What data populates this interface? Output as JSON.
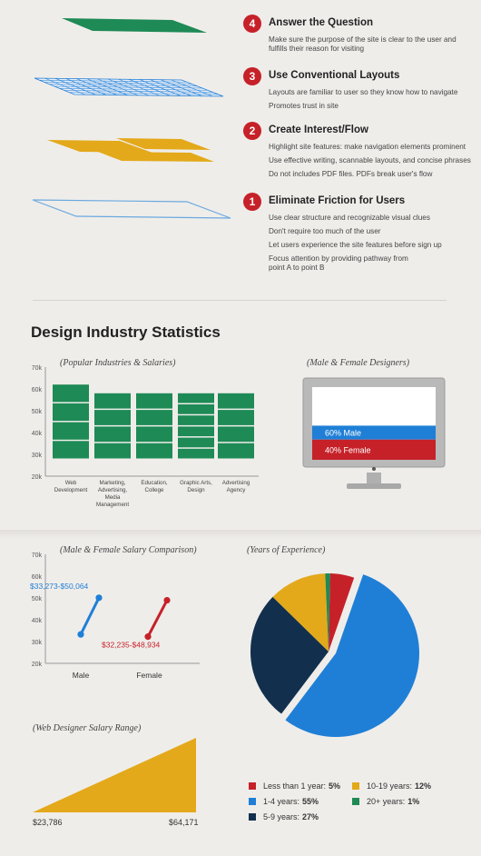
{
  "steps": [
    {
      "num": "4",
      "title": "Answer the Question",
      "lines": [
        "Make sure the purpose of the site is clear to the user and",
        "fulfills their reason for visiting"
      ]
    },
    {
      "num": "3",
      "title": "Use Conventional Layouts",
      "lines": [
        "Layouts are familiar to user so they know how to navigate",
        "Promotes trust in site"
      ]
    },
    {
      "num": "2",
      "title": "Create Interest/Flow",
      "lines": [
        "Highlight site features: make navigation elements prominent",
        "Use effective writing, scannable layouts, and concise phrases",
        "Do not includes PDF files. PDFs break user's flow"
      ]
    },
    {
      "num": "1",
      "title": "Eliminate Friction for Users",
      "lines": [
        "Use clear structure and recognizable visual clues",
        "Don't require too much of the user",
        "Let users experience the site features before sign up",
        "Focus attention by providing pathway from",
        "point A to point B"
      ]
    }
  ],
  "stats_title": "Design Industry Statistics",
  "colors": {
    "green": "#1e8a55",
    "blue": "#1f7fd6",
    "red": "#c62129",
    "yellow": "#e3a91a",
    "navy": "#12304d",
    "gray": "#b9b9b9"
  },
  "chart_data": [
    {
      "type": "bar",
      "title": "(Popular Industries & Salaries)",
      "categories": [
        "Web Development",
        "Marketing, Advertising, Media Management",
        "Education, College",
        "Graphic Arts, Design",
        "Advertising Agency"
      ],
      "category_lines": [
        [
          "Web",
          "Development"
        ],
        [
          "Marketing,",
          "Advertising,",
          "Media",
          "Management"
        ],
        [
          "Education,",
          "College"
        ],
        [
          "Graphic Arts,",
          "Design"
        ],
        [
          "Advertising",
          "Agency"
        ]
      ],
      "values": [
        62,
        58,
        58,
        58,
        58
      ],
      "yticks": [
        "70k",
        "60k",
        "50k",
        "40k",
        "30k",
        "20k"
      ],
      "ylim": [
        20,
        70
      ]
    },
    {
      "type": "bar",
      "title": "(Male & Female Designers)",
      "categories": [
        "Male",
        "Female"
      ],
      "values": [
        60,
        40
      ],
      "labels": [
        "60% Male",
        "40% Female"
      ]
    },
    {
      "type": "line",
      "title": "(Male & Female Salary Comparison)",
      "categories": [
        "Male",
        "Female"
      ],
      "ranges": [
        [
          33273,
          50064
        ],
        [
          32235,
          48934
        ]
      ],
      "range_labels": [
        "$33,273-$50,064",
        "$32,235-$48,934"
      ],
      "yticks": [
        "70k",
        "60k",
        "50k",
        "40k",
        "30k",
        "20k"
      ],
      "ylim": [
        20,
        70
      ]
    },
    {
      "type": "pie",
      "title": "(Years of Experience)",
      "slices": [
        {
          "label": "Less than 1 year:",
          "value": 5,
          "text": "5%"
        },
        {
          "label": "1-4 years:",
          "value": 55,
          "text": "55%"
        },
        {
          "label": "5-9 years:",
          "value": 27,
          "text": "27%"
        },
        {
          "label": "10-19 years:",
          "value": 12,
          "text": "12%"
        },
        {
          "label": "20+ years:",
          "value": 1,
          "text": "1%"
        }
      ]
    },
    {
      "type": "area",
      "title": "(Web Designer Salary Range)",
      "min_label": "$23,786",
      "max_label": "$64,171",
      "x": [
        23786,
        64171
      ]
    }
  ]
}
